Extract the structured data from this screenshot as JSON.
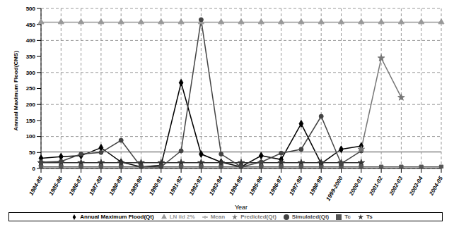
{
  "chart_data": {
    "type": "line",
    "x_label": "Year",
    "y_label": "Annual Maximum Flood(CMS)",
    "categories": [
      "1984-85",
      "1985-86",
      "1986-87",
      "1987-88",
      "1988-89",
      "1989-90",
      "1990-91",
      "1991-92",
      "1992-93",
      "1993-94",
      "1994-95",
      "1995-96",
      "1996-97",
      "1997-98",
      "1998-99",
      "1999-2000",
      "2000-01",
      "2001-02",
      "2002-03",
      "2003-04",
      "2004-05"
    ],
    "series": [
      {
        "name": "Annual Maximum Flood(Qt)",
        "color": "#000000",
        "marker": "diamond",
        "values": [
          32,
          37,
          40,
          65,
          20,
          5,
          10,
          268,
          45,
          20,
          5,
          40,
          28,
          140,
          15,
          60,
          70,
          null,
          null,
          null,
          null
        ]
      },
      {
        "name": "LN iid 2%",
        "color": "#999999",
        "marker": "triangle",
        "values": [
          457,
          457,
          457,
          457,
          457,
          457,
          457,
          457,
          457,
          457,
          457,
          457,
          457,
          457,
          457,
          457,
          457,
          457,
          457,
          457,
          457
        ]
      },
      {
        "name": "Mean",
        "color": "#888888",
        "marker": "none",
        "values": [
          52,
          52,
          52,
          52,
          52,
          52,
          52,
          52,
          52,
          52,
          52,
          52,
          52,
          52,
          52,
          52,
          52,
          52,
          52,
          52,
          52
        ]
      },
      {
        "name": "Ts",
        "color": "#333333",
        "marker": "star",
        "values": [
          18,
          18,
          18,
          18,
          18,
          18,
          18,
          18,
          18,
          18,
          18,
          18,
          18,
          18,
          18,
          18,
          18,
          null,
          null,
          null,
          null
        ]
      },
      {
        "name": "Tc",
        "color": "#555555",
        "marker": "square",
        "values": [
          5,
          5,
          5,
          5,
          5,
          5,
          5,
          5,
          5,
          5,
          5,
          5,
          5,
          5,
          5,
          5,
          5,
          5,
          5,
          5,
          5
        ]
      },
      {
        "name": "Simulated(Qt)",
        "color": "#444444",
        "marker": "circle",
        "values": [
          20,
          22,
          45,
          50,
          88,
          5,
          5,
          55,
          465,
          45,
          5,
          20,
          48,
          60,
          163,
          15,
          55,
          null,
          null,
          null,
          null
        ]
      },
      {
        "name": "Predicted(Qt)",
        "color": "#777777",
        "marker": "star",
        "values": [
          null,
          null,
          null,
          null,
          null,
          null,
          null,
          null,
          null,
          null,
          null,
          null,
          null,
          null,
          null,
          null,
          60,
          345,
          222,
          null,
          null
        ]
      }
    ],
    "ylim": [
      0,
      500
    ],
    "yticks": [
      0,
      50,
      100,
      150,
      200,
      250,
      300,
      350,
      400,
      450,
      500
    ],
    "grid": true,
    "legend": "bottom"
  }
}
